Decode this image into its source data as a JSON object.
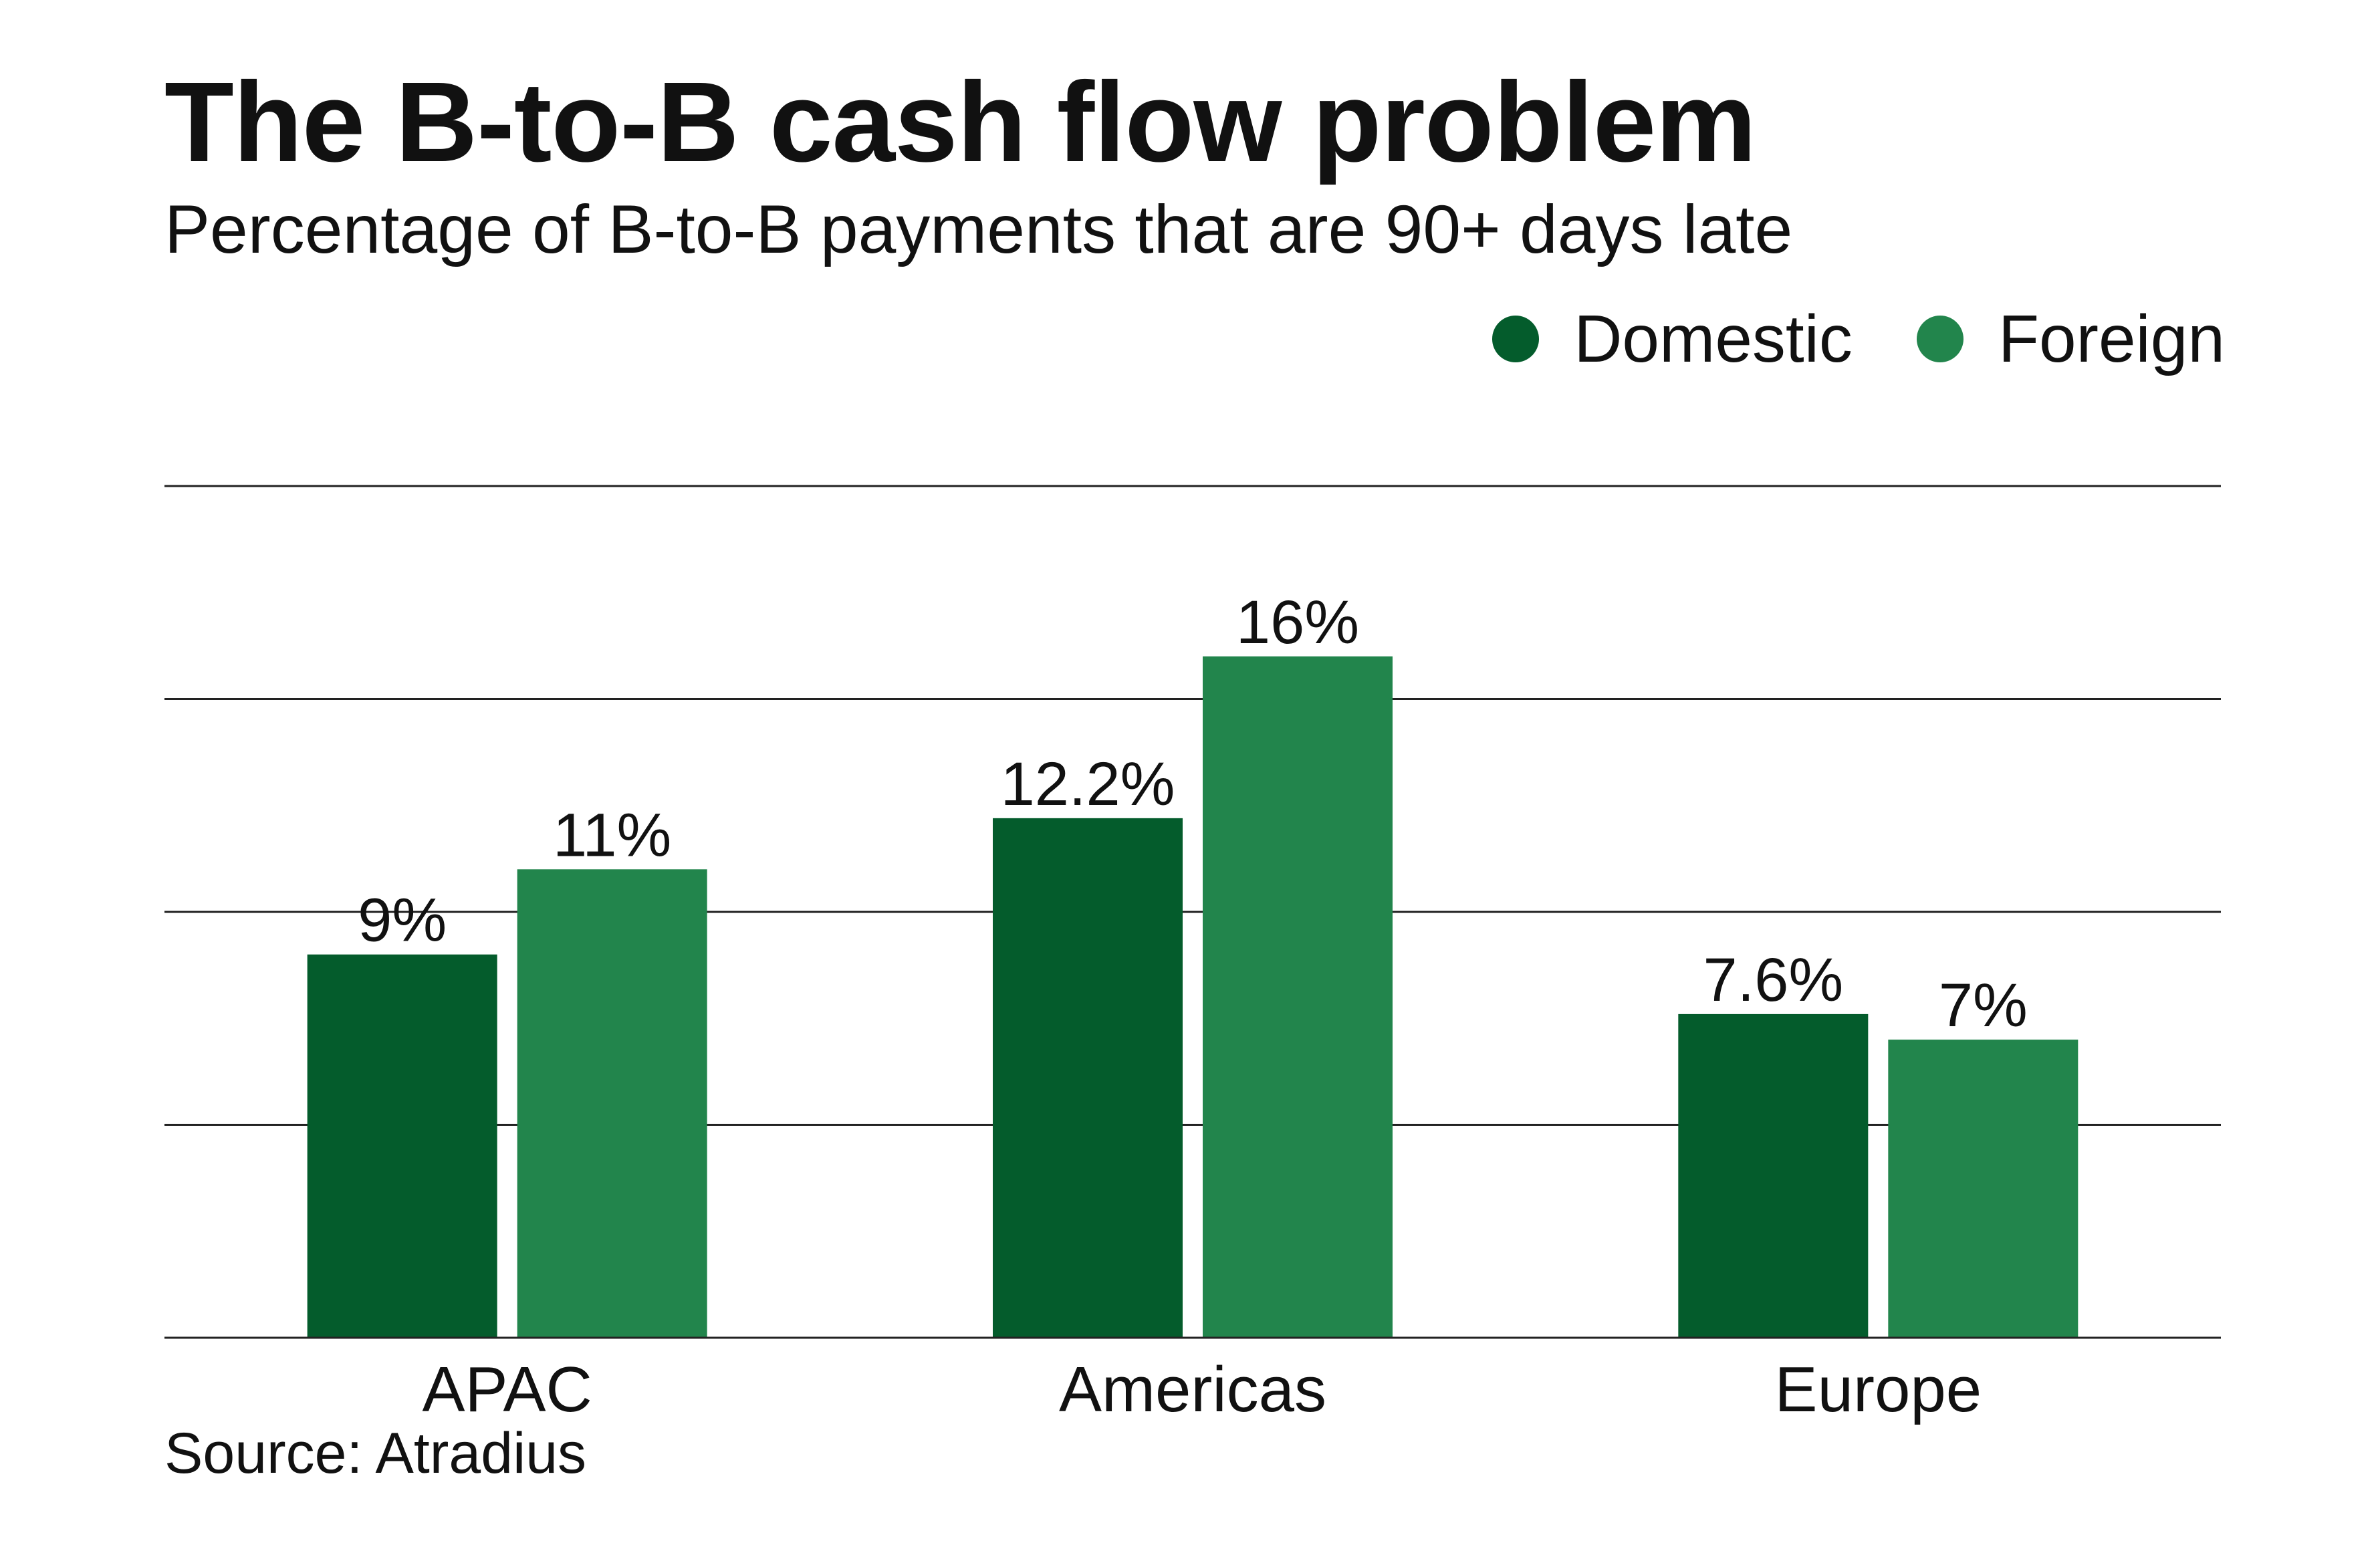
{
  "chart_data": {
    "type": "bar",
    "title": "The B-to-B cash flow problem",
    "subtitle": "Percentage of B-to-B payments that are 90+ days late",
    "categories": [
      "APAC",
      "Americas",
      "Europe"
    ],
    "series": [
      {
        "name": "Domestic",
        "color": "#045c2c",
        "values": [
          9,
          12.2,
          7.6
        ],
        "labels": [
          "9%",
          "12.2%",
          "7.6%"
        ]
      },
      {
        "name": "Foreign",
        "color": "#22854c",
        "values": [
          11,
          16,
          7
        ],
        "labels": [
          "11%",
          "16%",
          "7%"
        ]
      }
    ],
    "ylim": [
      0,
      20
    ],
    "gridlines": [
      0,
      5,
      10,
      15,
      20
    ],
    "grid": true,
    "legend_position": "top-right",
    "source": "Source: Atradius"
  }
}
